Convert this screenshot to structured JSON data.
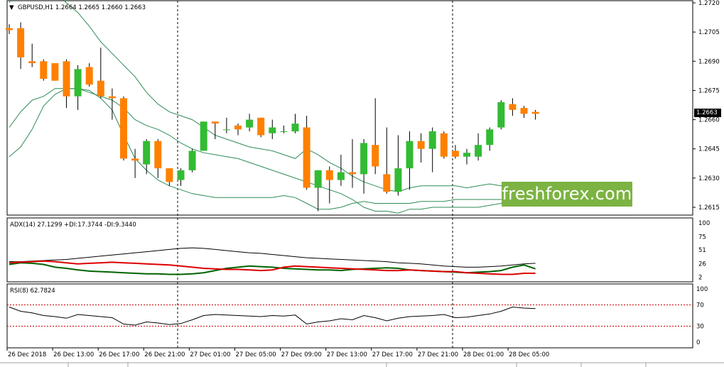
{
  "main_panel": {
    "symbol_header": "GBPUSD,H1  1.2664 1.2665 1.2660 1.2663",
    "current_price_label": "1.2663",
    "price_axis_labels": [
      "1.2720",
      "1.2705",
      "1.2690",
      "1.2675",
      "1.2660",
      "1.2645",
      "1.2630",
      "1.2615"
    ],
    "price_axis_values": [
      1.272,
      1.2705,
      1.269,
      1.2675,
      1.266,
      1.2645,
      1.263,
      1.2615
    ],
    "watermark": "freshforex.com"
  },
  "adx_panel": {
    "header": "ADX(14) 27.1299 +DI:17.3744 -DI:9.3440",
    "axis_labels": [
      "100",
      "75",
      "51",
      "26",
      "2"
    ],
    "axis_values": [
      100,
      75,
      51,
      26,
      2
    ]
  },
  "rsi_panel": {
    "header": "RSI(8) 62.7824",
    "axis_labels": [
      "100",
      "70",
      "30",
      "0"
    ],
    "axis_values": [
      100,
      70,
      30,
      0
    ]
  },
  "time_axis_labels": [
    "26 Dec 2018",
    "26 Dec 13:00",
    "26 Dec 17:00",
    "26 Dec 21:00",
    "27 Dec 01:00",
    "27 Dec 05:00",
    "27 Dec 09:00",
    "27 Dec 13:00",
    "27 Dec 17:00",
    "27 Dec 21:00",
    "28 Dec 01:00",
    "28 Dec 05:00"
  ],
  "colors": {
    "bull": "#33bb33",
    "bear": "#ff8000",
    "band": "#2e8b57",
    "adx": "#000000",
    "plus_di": "#006400",
    "minus_di": "#dd0000",
    "rsi": "#000000",
    "level": "#cc0000"
  },
  "chart_data": {
    "type": "candlestick",
    "candles": [
      {
        "o": 1.2707,
        "h": 1.2709,
        "l": 1.2704,
        "c": 1.2706
      },
      {
        "o": 1.2707,
        "h": 1.271,
        "l": 1.2686,
        "c": 1.2692
      },
      {
        "o": 1.269,
        "h": 1.2699,
        "l": 1.2687,
        "c": 1.2689
      },
      {
        "o": 1.269,
        "h": 1.2691,
        "l": 1.268,
        "c": 1.2681
      },
      {
        "o": 1.2689,
        "h": 1.2689,
        "l": 1.268,
        "c": 1.268
      },
      {
        "o": 1.269,
        "h": 1.2691,
        "l": 1.2666,
        "c": 1.2672
      },
      {
        "o": 1.2672,
        "h": 1.2688,
        "l": 1.2665,
        "c": 1.2686
      },
      {
        "o": 1.2687,
        "h": 1.2689,
        "l": 1.2677,
        "c": 1.2678
      },
      {
        "o": 1.268,
        "h": 1.2697,
        "l": 1.2671,
        "c": 1.2672
      },
      {
        "o": 1.2672,
        "h": 1.2676,
        "l": 1.266,
        "c": 1.2671
      },
      {
        "o": 1.2671,
        "h": 1.2672,
        "l": 1.2639,
        "c": 1.264
      },
      {
        "o": 1.264,
        "h": 1.2645,
        "l": 1.263,
        "c": 1.2639
      },
      {
        "o": 1.2637,
        "h": 1.265,
        "l": 1.2632,
        "c": 1.2649
      },
      {
        "o": 1.2649,
        "h": 1.265,
        "l": 1.263,
        "c": 1.2635
      },
      {
        "o": 1.2635,
        "h": 1.2635,
        "l": 1.2626,
        "c": 1.2628
      },
      {
        "o": 1.2629,
        "h": 1.2635,
        "l": 1.2626,
        "c": 1.2634
      },
      {
        "o": 1.2634,
        "h": 1.2645,
        "l": 1.2633,
        "c": 1.2644
      },
      {
        "o": 1.2644,
        "h": 1.2659,
        "l": 1.2644,
        "c": 1.2659
      },
      {
        "o": 1.2659,
        "h": 1.2659,
        "l": 1.265,
        "c": 1.2658
      },
      {
        "o": 1.2655,
        "h": 1.2661,
        "l": 1.2653,
        "c": 1.2655
      },
      {
        "o": 1.2657,
        "h": 1.2658,
        "l": 1.2652,
        "c": 1.2655
      },
      {
        "o": 1.2656,
        "h": 1.2663,
        "l": 1.2654,
        "c": 1.266
      },
      {
        "o": 1.2661,
        "h": 1.2661,
        "l": 1.2651,
        "c": 1.2652
      },
      {
        "o": 1.2653,
        "h": 1.266,
        "l": 1.265,
        "c": 1.2656
      },
      {
        "o": 1.2654,
        "h": 1.2657,
        "l": 1.2653,
        "c": 1.2654
      },
      {
        "o": 1.2654,
        "h": 1.2663,
        "l": 1.2653,
        "c": 1.2658
      },
      {
        "o": 1.2656,
        "h": 1.2662,
        "l": 1.2624,
        "c": 1.2625
      },
      {
        "o": 1.2625,
        "h": 1.2634,
        "l": 1.2613,
        "c": 1.2634
      },
      {
        "o": 1.2634,
        "h": 1.2636,
        "l": 1.2617,
        "c": 1.2629
      },
      {
        "o": 1.2629,
        "h": 1.2642,
        "l": 1.2626,
        "c": 1.2633
      },
      {
        "o": 1.2633,
        "h": 1.265,
        "l": 1.2625,
        "c": 1.2632
      },
      {
        "o": 1.2632,
        "h": 1.265,
        "l": 1.2622,
        "c": 1.2648
      },
      {
        "o": 1.2647,
        "h": 1.2671,
        "l": 1.2632,
        "c": 1.2636
      },
      {
        "o": 1.2632,
        "h": 1.2656,
        "l": 1.2622,
        "c": 1.2623
      },
      {
        "o": 1.2623,
        "h": 1.2652,
        "l": 1.2621,
        "c": 1.2635
      },
      {
        "o": 1.2635,
        "h": 1.2654,
        "l": 1.2624,
        "c": 1.2649
      },
      {
        "o": 1.2649,
        "h": 1.2653,
        "l": 1.2638,
        "c": 1.2645
      },
      {
        "o": 1.2645,
        "h": 1.2656,
        "l": 1.2633,
        "c": 1.2654
      },
      {
        "o": 1.2653,
        "h": 1.2654,
        "l": 1.264,
        "c": 1.2641
      },
      {
        "o": 1.2644,
        "h": 1.2647,
        "l": 1.264,
        "c": 1.2641
      },
      {
        "o": 1.2641,
        "h": 1.2645,
        "l": 1.2637,
        "c": 1.2643
      },
      {
        "o": 1.2641,
        "h": 1.2653,
        "l": 1.2639,
        "c": 1.2647
      },
      {
        "o": 1.2647,
        "h": 1.2656,
        "l": 1.2644,
        "c": 1.2655
      },
      {
        "o": 1.2656,
        "h": 1.267,
        "l": 1.2655,
        "c": 1.2669
      },
      {
        "o": 1.2668,
        "h": 1.2671,
        "l": 1.2662,
        "c": 1.2665
      },
      {
        "o": 1.2666,
        "h": 1.2667,
        "l": 1.2661,
        "c": 1.2663
      },
      {
        "o": 1.2664,
        "h": 1.2665,
        "l": 1.266,
        "c": 1.2663
      }
    ],
    "bb_upper": [
      1.272,
      1.2732,
      1.2736,
      1.273,
      1.2726,
      1.272,
      1.2715,
      1.2708,
      1.27,
      1.2694,
      1.2688,
      1.2682,
      1.2674,
      1.2668,
      1.2664,
      1.2662,
      1.266,
      1.2656,
      1.2652,
      1.265,
      1.2648,
      1.2646,
      1.2645,
      1.2644,
      1.2642,
      1.264,
      1.2645,
      1.2642,
      1.2638,
      1.2635,
      1.2631,
      1.2628,
      1.2626,
      1.2624,
      1.2623,
      1.2625,
      1.2626,
      1.2626,
      1.2626,
      1.2626,
      1.2625,
      1.2626,
      1.2627,
      1.2626,
      1.2625,
      1.2624,
      1.2624
    ],
    "bb_middle": [
      1.2656,
      1.2664,
      1.267,
      1.2672,
      1.2676,
      1.2676,
      1.2676,
      1.2674,
      1.2672,
      1.267,
      1.2666,
      1.266,
      1.2657,
      1.2655,
      1.2652,
      1.2648,
      1.2645,
      1.2643,
      1.2642,
      1.2641,
      1.264,
      1.2638,
      1.2636,
      1.2634,
      1.2632,
      1.263,
      1.2628,
      1.2626,
      1.2624,
      1.2622,
      1.2619,
      1.2615,
      1.2613,
      1.2613,
      1.2612,
      1.2614,
      1.2614,
      1.2615,
      1.2615,
      1.2615,
      1.2615,
      1.2615,
      1.2616,
      1.2617,
      1.2619,
      1.262,
      1.2621
    ],
    "bb_lower": [
      1.2641,
      1.2646,
      1.2655,
      1.2667,
      1.2673,
      1.2676,
      1.2676,
      1.2675,
      1.2671,
      1.2665,
      1.2652,
      1.264,
      1.2634,
      1.2629,
      1.2626,
      1.2624,
      1.2622,
      1.2621,
      1.262,
      1.262,
      1.262,
      1.262,
      1.262,
      1.262,
      1.2621,
      1.262,
      1.2617,
      1.2614,
      1.2614,
      1.2615,
      1.2617,
      1.2618,
      1.2617,
      1.2617,
      1.2617,
      1.2617,
      1.2618,
      1.2618,
      1.2618,
      1.2619,
      1.2619,
      1.2619,
      1.2619,
      1.2619,
      1.262,
      1.262,
      1.262
    ],
    "adx": [
      30,
      30,
      31,
      32,
      33,
      34,
      36,
      38,
      40,
      42,
      44,
      46,
      48,
      50,
      52,
      54,
      55,
      54,
      52,
      50,
      48,
      46,
      45,
      43,
      41,
      39,
      37,
      36,
      35,
      34,
      33,
      32,
      31,
      30,
      28,
      27,
      26,
      24,
      22,
      21,
      20,
      20,
      21,
      22,
      24,
      26,
      27
    ],
    "plus_di": [
      25,
      28,
      27,
      25,
      20,
      18,
      15,
      13,
      12,
      11,
      10,
      9,
      8,
      8,
      7,
      7,
      8,
      10,
      14,
      18,
      20,
      22,
      21,
      20,
      18,
      17,
      16,
      15,
      15,
      14,
      16,
      17,
      18,
      19,
      18,
      15,
      14,
      13,
      12,
      11,
      10,
      11,
      12,
      14,
      20,
      24,
      17
    ],
    "minus_di": [
      28,
      29,
      30,
      31,
      30,
      28,
      26,
      27,
      28,
      29,
      28,
      27,
      26,
      25,
      24,
      22,
      20,
      18,
      17,
      16,
      16,
      15,
      14,
      15,
      20,
      22,
      21,
      20,
      19,
      18,
      17,
      16,
      15,
      14,
      14,
      15,
      14,
      13,
      12,
      12,
      10,
      9,
      8,
      7,
      7,
      9,
      9
    ],
    "rsi": [
      66,
      58,
      55,
      50,
      48,
      45,
      52,
      50,
      48,
      46,
      34,
      32,
      38,
      36,
      33,
      35,
      42,
      50,
      52,
      51,
      50,
      49,
      48,
      50,
      49,
      51,
      34,
      38,
      40,
      44,
      42,
      50,
      46,
      40,
      45,
      48,
      49,
      50,
      52,
      46,
      47,
      50,
      53,
      58,
      66,
      64,
      63
    ]
  }
}
